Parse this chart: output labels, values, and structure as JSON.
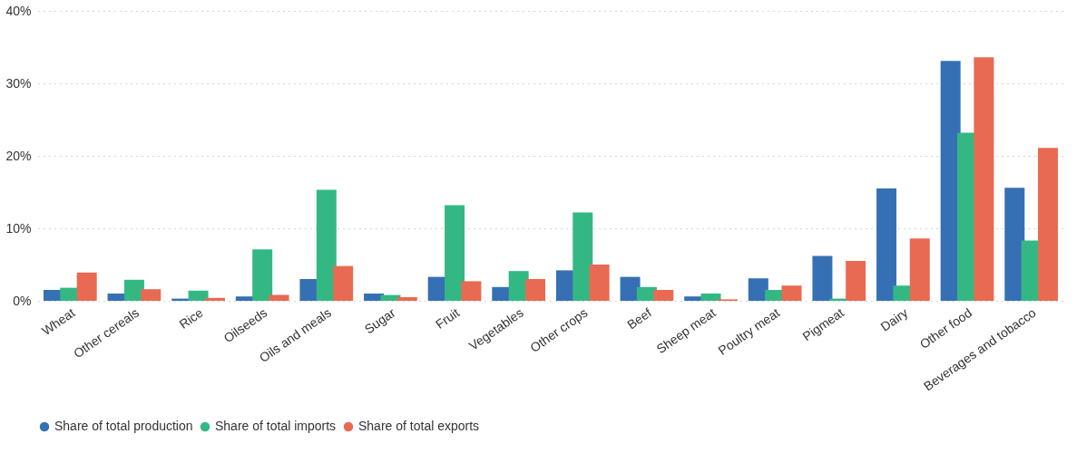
{
  "chart_data": {
    "type": "bar",
    "categories": [
      "Wheat",
      "Other cereals",
      "Rice",
      "Oilseeds",
      "Oils and meals",
      "Sugar",
      "Fruit",
      "Vegetables",
      "Other crops",
      "Beef",
      "Sheep meat",
      "Poultry meat",
      "Pigmeat",
      "Dairy",
      "Other food",
      "Beverages and tobacco"
    ],
    "series": [
      {
        "name": "Share of total production",
        "color": "#3670b4",
        "values": [
          1.5,
          1.0,
          0.3,
          0.6,
          3.0,
          1.0,
          3.3,
          1.9,
          4.2,
          3.3,
          0.6,
          3.1,
          6.2,
          15.5,
          33.1,
          15.6
        ]
      },
      {
        "name": "Share of total imports",
        "color": "#33b884",
        "values": [
          1.8,
          2.9,
          1.4,
          7.1,
          15.3,
          0.8,
          13.2,
          4.1,
          12.2,
          1.9,
          1.0,
          1.5,
          0.3,
          2.1,
          23.2,
          8.3
        ]
      },
      {
        "name": "Share of total exports",
        "color": "#e86a52",
        "values": [
          3.9,
          1.6,
          0.4,
          0.8,
          4.8,
          0.5,
          2.7,
          3.0,
          5.0,
          1.5,
          0.2,
          2.1,
          5.5,
          8.6,
          33.6,
          21.1
        ]
      }
    ],
    "ylim": [
      0,
      40
    ],
    "yticks": [
      {
        "value": 0,
        "label": "0%"
      },
      {
        "value": 10,
        "label": "10%"
      },
      {
        "value": 20,
        "label": "20%"
      },
      {
        "value": 30,
        "label": "30%"
      },
      {
        "value": 40,
        "label": "40%"
      }
    ],
    "grid": "y",
    "legend": "bottom"
  }
}
